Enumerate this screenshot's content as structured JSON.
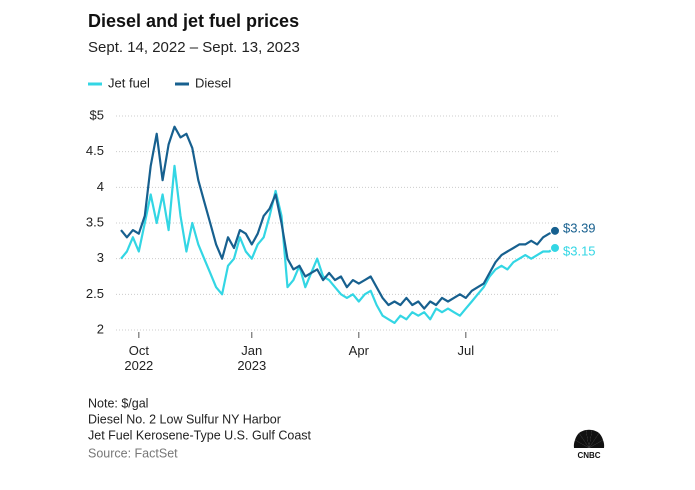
{
  "chart_data": {
    "type": "line",
    "title": "Diesel and jet fuel prices",
    "subtitle": "Sept. 14, 2022 – Sept. 13, 2023",
    "categories": [
      null,
      null,
      null,
      "Oct 2022",
      null,
      null,
      null,
      null,
      null,
      null,
      null,
      null,
      null,
      null,
      null,
      null,
      null,
      null,
      null,
      null,
      null,
      null,
      "Jan 2023",
      null,
      null,
      null,
      null,
      null,
      null,
      null,
      null,
      null,
      null,
      null,
      null,
      null,
      null,
      null,
      null,
      null,
      "Apr",
      null,
      null,
      null,
      null,
      null,
      null,
      null,
      null,
      null,
      null,
      null,
      null,
      null,
      null,
      null,
      null,
      null,
      "Jul",
      null,
      null,
      null,
      null,
      null,
      null,
      null,
      null,
      null,
      null,
      null,
      null,
      null,
      null,
      null
    ],
    "series": [
      {
        "name": "Jet fuel",
        "color": "#33d6e4",
        "values": [
          3.0,
          3.1,
          3.3,
          3.1,
          3.5,
          3.9,
          3.5,
          3.9,
          3.4,
          4.3,
          3.6,
          3.1,
          3.5,
          3.2,
          3.0,
          2.8,
          2.6,
          2.5,
          2.9,
          3.0,
          3.3,
          3.1,
          3.0,
          3.2,
          3.3,
          3.6,
          3.95,
          3.6,
          2.6,
          2.7,
          2.9,
          2.6,
          2.8,
          3.0,
          2.75,
          2.7,
          2.6,
          2.5,
          2.45,
          2.5,
          2.4,
          2.5,
          2.55,
          2.35,
          2.2,
          2.15,
          2.1,
          2.2,
          2.15,
          2.25,
          2.2,
          2.25,
          2.15,
          2.3,
          2.25,
          2.3,
          2.25,
          2.2,
          2.3,
          2.4,
          2.5,
          2.6,
          2.75,
          2.85,
          2.9,
          2.85,
          2.95,
          3.0,
          3.05,
          3.0,
          3.05,
          3.1,
          3.1,
          3.15
        ],
        "value_labels": [
          null,
          null,
          null,
          null,
          null,
          null,
          null,
          null,
          null,
          null,
          null,
          null,
          null,
          null,
          null,
          null,
          null,
          null,
          null,
          null,
          null,
          null,
          null,
          null,
          null,
          null,
          null,
          null,
          null,
          null,
          null,
          null,
          null,
          null,
          null,
          null,
          null,
          null,
          null,
          null,
          null,
          null,
          null,
          null,
          null,
          null,
          null,
          null,
          null,
          null,
          null,
          null,
          null,
          null,
          null,
          null,
          null,
          null,
          null,
          null,
          null,
          null,
          null,
          null,
          null,
          null,
          null,
          null,
          null,
          null,
          null,
          null,
          null,
          "$3.15"
        ]
      },
      {
        "name": "Diesel",
        "color": "#17608f",
        "values": [
          3.4,
          3.3,
          3.4,
          3.35,
          3.6,
          4.3,
          4.75,
          4.1,
          4.6,
          4.85,
          4.7,
          4.75,
          4.55,
          4.1,
          3.8,
          3.5,
          3.2,
          3.0,
          3.3,
          3.15,
          3.4,
          3.35,
          3.2,
          3.35,
          3.6,
          3.7,
          3.9,
          3.5,
          3.0,
          2.85,
          2.9,
          2.75,
          2.8,
          2.85,
          2.7,
          2.8,
          2.7,
          2.75,
          2.6,
          2.7,
          2.65,
          2.7,
          2.75,
          2.6,
          2.45,
          2.35,
          2.4,
          2.35,
          2.45,
          2.35,
          2.4,
          2.3,
          2.4,
          2.35,
          2.45,
          2.4,
          2.45,
          2.5,
          2.45,
          2.55,
          2.6,
          2.65,
          2.8,
          2.95,
          3.05,
          3.1,
          3.15,
          3.2,
          3.2,
          3.25,
          3.2,
          3.3,
          3.35,
          3.39
        ],
        "value_labels": [
          null,
          null,
          null,
          null,
          null,
          null,
          null,
          null,
          null,
          null,
          null,
          null,
          null,
          null,
          null,
          null,
          null,
          null,
          null,
          null,
          null,
          null,
          null,
          null,
          null,
          null,
          null,
          null,
          null,
          null,
          null,
          null,
          null,
          null,
          null,
          null,
          null,
          null,
          null,
          null,
          null,
          null,
          null,
          null,
          null,
          null,
          null,
          null,
          null,
          null,
          null,
          null,
          null,
          null,
          null,
          null,
          null,
          null,
          null,
          null,
          null,
          null,
          null,
          null,
          null,
          null,
          null,
          null,
          null,
          null,
          null,
          null,
          null,
          "$3.39"
        ]
      }
    ],
    "ylim": [
      2,
      5
    ],
    "yticks": [
      2,
      2.5,
      3,
      3.5,
      4,
      4.5,
      {
        "value": 5,
        "label": "$5"
      }
    ],
    "grid": true,
    "legend": "top-left",
    "notes": [
      "Note: $/gal",
      "Diesel No. 2 Low Sulfur NY Harbor",
      "Jet Fuel Kerosene-Type U.S. Gulf Coast"
    ],
    "source": "Source: FactSet",
    "logo": "CNBC"
  }
}
